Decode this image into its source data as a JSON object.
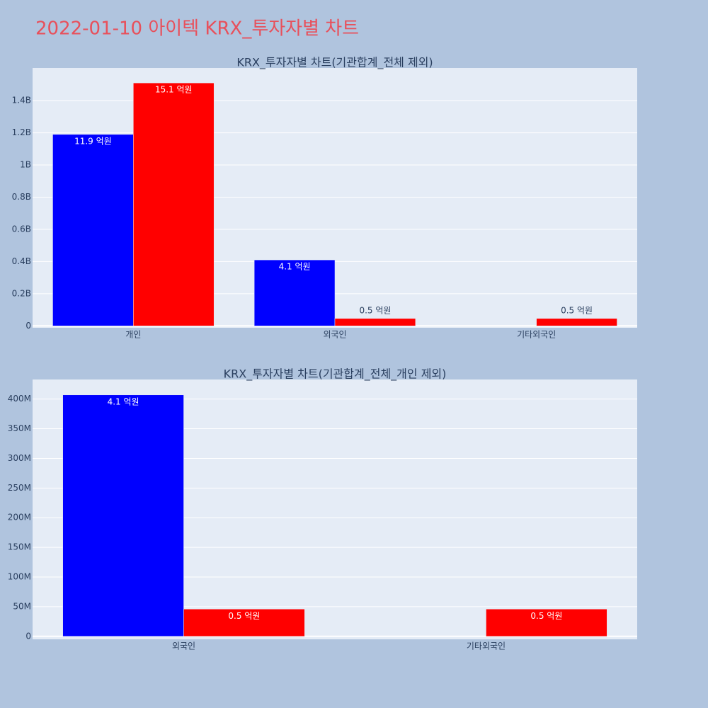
{
  "title": "2022-01-10 아이텍 KRX_투자자별 차트",
  "chart_data": [
    {
      "type": "bar",
      "title": "KRX_투자자별 차트(기관합계_전체 제외)",
      "categories": [
        "개인",
        "외국인",
        "기타외국인"
      ],
      "series": [
        {
          "color": "#0000ff",
          "values": [
            1190000000,
            410000000,
            null
          ],
          "value_labels": [
            "11.9 억원",
            "4.1 억원",
            null
          ]
        },
        {
          "color": "#ff0000",
          "values": [
            1510000000,
            46000000,
            46000000
          ],
          "value_labels": [
            "15.1 억원",
            "0.5 억원",
            "0.5 억원"
          ]
        }
      ],
      "ylim": [
        -12000000,
        1603000000
      ],
      "yticks": [
        0,
        {
          "value": 200000000,
          "label": "0.2B"
        },
        {
          "value": 400000000,
          "label": "0.4B"
        },
        {
          "value": 600000000,
          "label": "0.6B"
        },
        {
          "value": 800000000,
          "label": "0.8B"
        },
        {
          "value": 1000000000,
          "label": "1B"
        },
        {
          "value": 1200000000,
          "label": "1.2B"
        },
        {
          "value": 1400000000,
          "label": "1.4B"
        }
      ],
      "grid": true
    },
    {
      "type": "bar",
      "title": "KRX_투자자별 차트(기관합계_전체_개인 제외)",
      "categories": [
        "외국인",
        "기타외국인"
      ],
      "series": [
        {
          "color": "#0000ff",
          "values": [
            407000000,
            null
          ],
          "value_labels": [
            "4.1 억원",
            null
          ]
        },
        {
          "color": "#ff0000",
          "values": [
            46000000,
            46000000
          ],
          "value_labels": [
            "0.5 억원",
            "0.5 억원"
          ]
        }
      ],
      "ylim": [
        -5000000,
        433000000
      ],
      "yticks": [
        0,
        {
          "value": 50000000,
          "label": "50M"
        },
        {
          "value": 100000000,
          "label": "100M"
        },
        {
          "value": 150000000,
          "label": "150M"
        },
        {
          "value": 200000000,
          "label": "200M"
        },
        {
          "value": 250000000,
          "label": "250M"
        },
        {
          "value": 300000000,
          "label": "300M"
        },
        {
          "value": 350000000,
          "label": "350M"
        },
        {
          "value": 400000000,
          "label": "400M"
        }
      ],
      "grid": true
    }
  ]
}
